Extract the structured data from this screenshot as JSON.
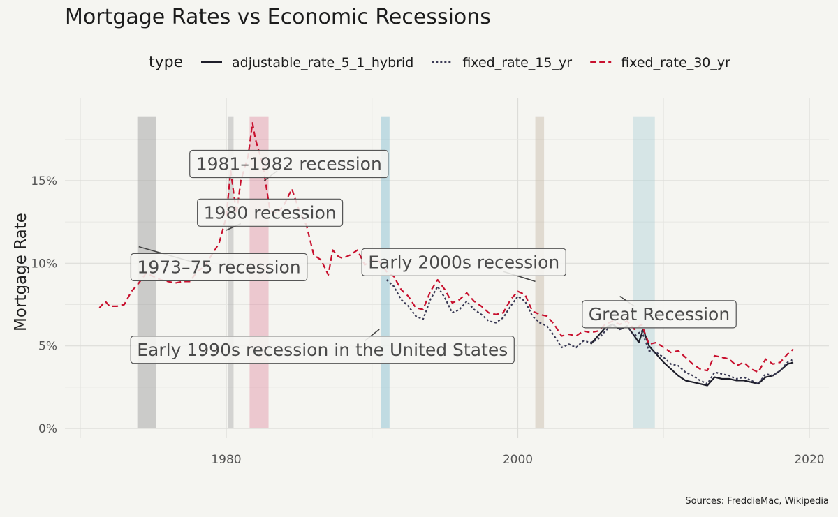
{
  "chart_data": {
    "type": "line",
    "title": "Mortgage Rates vs Economic Recessions",
    "legend_title": "type",
    "legend_position": "top",
    "ylabel": "Mortgage Rate",
    "xlabel": "",
    "caption": "Sources: FreddieMac, Wikipedia",
    "xlim": [
      1970,
      2020
    ],
    "ylim": [
      0,
      19
    ],
    "x_ticks": [
      1980,
      2000,
      2020
    ],
    "y_ticks": [
      0,
      5,
      10,
      15
    ],
    "y_tick_labels": [
      "0%",
      "5%",
      "10%",
      "15%"
    ],
    "series": [
      {
        "name": "adjustable_rate_5_1_hybrid",
        "color": "#1e1e2a",
        "dash": "solid",
        "x": [
          2005.0,
          2005.5,
          2006.0,
          2006.5,
          2007.0,
          2007.5,
          2008.0,
          2008.3,
          2008.6,
          2009.0,
          2009.5,
          2010.0,
          2010.5,
          2011.0,
          2011.5,
          2012.0,
          2012.5,
          2013.0,
          2013.5,
          2014.0,
          2014.5,
          2015.0,
          2015.5,
          2016.0,
          2016.5,
          2017.0,
          2017.5,
          2018.0,
          2018.5,
          2018.9
        ],
        "values": [
          5.1,
          5.6,
          6.1,
          6.3,
          6.0,
          6.2,
          5.6,
          5.2,
          6.0,
          5.0,
          4.5,
          4.0,
          3.6,
          3.2,
          2.9,
          2.8,
          2.7,
          2.6,
          3.1,
          3.0,
          3.0,
          2.9,
          2.9,
          2.8,
          2.7,
          3.1,
          3.2,
          3.5,
          3.9,
          4.0
        ]
      },
      {
        "name": "fixed_rate_15_yr",
        "color": "#3a3a55",
        "dash": "dotted",
        "x": [
          1991.0,
          1991.5,
          1992.0,
          1992.5,
          1993.0,
          1993.5,
          1994.0,
          1994.5,
          1995.0,
          1995.5,
          1996.0,
          1996.5,
          1997.0,
          1997.5,
          1998.0,
          1998.5,
          1999.0,
          1999.5,
          2000.0,
          2000.5,
          2001.0,
          2001.5,
          2002.0,
          2002.5,
          2003.0,
          2003.5,
          2004.0,
          2004.5,
          2005.0,
          2005.5,
          2006.0,
          2006.5,
          2007.0,
          2007.5,
          2008.0,
          2008.5,
          2009.0,
          2009.5,
          2010.0,
          2010.5,
          2011.0,
          2011.5,
          2012.0,
          2012.5,
          2013.0,
          2013.5,
          2014.0,
          2014.5,
          2015.0,
          2015.5,
          2016.0,
          2016.5,
          2017.0,
          2017.5,
          2018.0,
          2018.5,
          2018.9
        ],
        "values": [
          9.0,
          8.6,
          7.8,
          7.4,
          6.8,
          6.6,
          7.8,
          8.6,
          7.9,
          7.0,
          7.2,
          7.7,
          7.2,
          6.9,
          6.5,
          6.4,
          6.7,
          7.4,
          8.0,
          7.7,
          6.8,
          6.4,
          6.2,
          5.6,
          4.9,
          5.1,
          4.9,
          5.3,
          5.2,
          5.4,
          5.9,
          6.3,
          6.0,
          6.2,
          5.6,
          5.9,
          4.7,
          4.6,
          4.3,
          3.9,
          3.8,
          3.4,
          3.2,
          2.9,
          2.7,
          3.4,
          3.3,
          3.2,
          3.0,
          3.1,
          2.9,
          2.7,
          3.3,
          3.2,
          3.5,
          4.0,
          4.2
        ]
      },
      {
        "name": "fixed_rate_30_yr",
        "color": "#c8102e",
        "dash": "dashed",
        "x": [
          1971.3,
          1971.7,
          1972.0,
          1972.5,
          1973.0,
          1973.5,
          1974.0,
          1974.5,
          1975.0,
          1975.5,
          1976.0,
          1976.5,
          1977.0,
          1977.5,
          1978.0,
          1978.5,
          1979.0,
          1979.5,
          1980.0,
          1980.3,
          1980.7,
          1981.0,
          1981.5,
          1981.8,
          1982.0,
          1982.5,
          1983.0,
          1983.5,
          1984.0,
          1984.5,
          1985.0,
          1985.5,
          1986.0,
          1986.5,
          1987.0,
          1987.3,
          1987.7,
          1988.0,
          1988.5,
          1989.0,
          1989.5,
          1990.0,
          1990.5,
          1991.0,
          1991.5,
          1992.0,
          1992.5,
          1993.0,
          1993.5,
          1994.0,
          1994.5,
          1995.0,
          1995.5,
          1996.0,
          1996.5,
          1997.0,
          1997.5,
          1998.0,
          1998.5,
          1999.0,
          1999.5,
          2000.0,
          2000.5,
          2001.0,
          2001.5,
          2002.0,
          2002.5,
          2003.0,
          2003.5,
          2004.0,
          2004.5,
          2005.0,
          2005.5,
          2006.0,
          2006.5,
          2007.0,
          2007.5,
          2008.0,
          2008.5,
          2009.0,
          2009.5,
          2010.0,
          2010.5,
          2011.0,
          2011.5,
          2012.0,
          2012.5,
          2013.0,
          2013.5,
          2014.0,
          2014.5,
          2015.0,
          2015.5,
          2016.0,
          2016.5,
          2017.0,
          2017.5,
          2018.0,
          2018.5,
          2018.9
        ],
        "values": [
          7.3,
          7.7,
          7.4,
          7.4,
          7.5,
          8.3,
          8.8,
          9.4,
          9.2,
          9.0,
          8.9,
          8.8,
          8.9,
          8.9,
          9.5,
          9.8,
          10.5,
          11.2,
          12.8,
          15.6,
          13.0,
          15.0,
          16.5,
          18.5,
          17.5,
          16.0,
          13.2,
          13.0,
          13.6,
          14.5,
          13.2,
          12.3,
          10.5,
          10.2,
          9.3,
          10.8,
          10.4,
          10.3,
          10.5,
          10.8,
          9.9,
          10.2,
          10.1,
          9.5,
          9.2,
          8.4,
          8.0,
          7.3,
          7.2,
          8.3,
          9.0,
          8.4,
          7.6,
          7.8,
          8.2,
          7.7,
          7.4,
          7.0,
          6.9,
          7.0,
          7.8,
          8.3,
          8.1,
          7.1,
          6.9,
          6.8,
          6.3,
          5.6,
          5.7,
          5.6,
          5.9,
          5.8,
          5.9,
          6.3,
          6.5,
          6.3,
          6.5,
          6.0,
          6.3,
          5.1,
          5.2,
          4.9,
          4.6,
          4.7,
          4.3,
          3.9,
          3.6,
          3.5,
          4.4,
          4.3,
          4.2,
          3.8,
          4.0,
          3.6,
          3.4,
          4.2,
          3.9,
          4.0,
          4.5,
          4.8
        ]
      }
    ],
    "recessions": [
      {
        "label": "1973–75 recession",
        "start": 1973.9,
        "end": 1975.2,
        "color": "#999999",
        "opacity": 0.45,
        "label_x": 1979.5,
        "label_y": 9.7,
        "leader_from_x": 1978.0,
        "leader_from_y": 10.0,
        "leader_to_x": 1974.0,
        "leader_to_y": 11.0
      },
      {
        "label": "1980 recession",
        "start": 1980.1,
        "end": 1980.5,
        "color": "#aaaaaa",
        "opacity": 0.45,
        "label_x": 1983.0,
        "label_y": 13.0,
        "leader_from_x": 1981.0,
        "leader_from_y": 12.4,
        "leader_to_x": 1980.0,
        "leader_to_y": 12.0
      },
      {
        "label": "1981–1982 recession",
        "start": 1981.6,
        "end": 1982.9,
        "color": "#d86080",
        "opacity": 0.3,
        "label_x": 1984.3,
        "label_y": 15.95,
        "leader_from_x": 1983.5,
        "leader_from_y": 15.6,
        "leader_to_x": 1982.6,
        "leader_to_y": 15.0
      },
      {
        "label": "Early 1990s recession in the United States",
        "start": 1990.6,
        "end": 1991.2,
        "color": "#80bcd0",
        "opacity": 0.45,
        "label_x": 1986.6,
        "label_y": 4.7,
        "leader_from_x": 1989.5,
        "leader_from_y": 5.3,
        "leader_to_x": 1990.5,
        "leader_to_y": 6.0
      },
      {
        "label": "Early 2000s recession",
        "start": 2001.2,
        "end": 2001.8,
        "color": "#c8bba8",
        "opacity": 0.45,
        "label_x": 1996.3,
        "label_y": 10.0,
        "leader_from_x": 1999.0,
        "leader_from_y": 9.5,
        "leader_to_x": 2001.2,
        "leader_to_y": 8.9
      },
      {
        "label": "Great Recession",
        "start": 2007.9,
        "end": 2009.4,
        "color": "#a8cdd6",
        "opacity": 0.4,
        "label_x": 2009.7,
        "label_y": 6.85,
        "leader_from_x": 2008.0,
        "leader_from_y": 7.4,
        "leader_to_x": 2007.0,
        "leader_to_y": 8.0
      }
    ]
  }
}
